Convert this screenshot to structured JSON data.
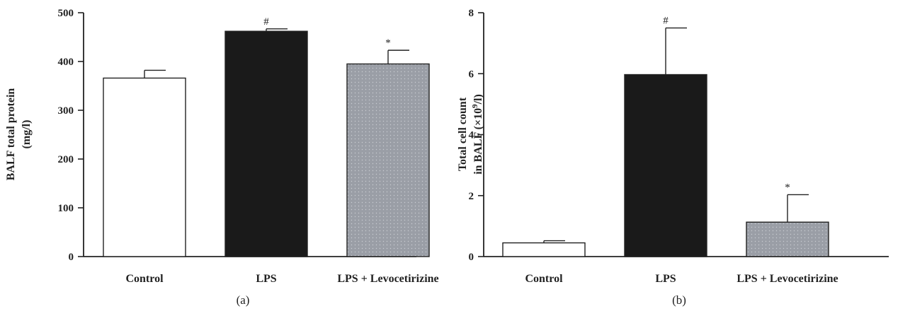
{
  "chart_data": [
    {
      "type": "bar",
      "panel_label": "(a)",
      "categories": [
        "Control",
        "LPS",
        "LPS + Levocetirizine"
      ],
      "values": [
        366,
        462,
        395
      ],
      "errors": [
        16,
        5,
        28
      ],
      "annotations": [
        "",
        "#",
        "*"
      ],
      "ylabel_lines": [
        "BALF total protein",
        "(mg/l)"
      ],
      "ylim": [
        0,
        500
      ],
      "yticks": [
        0,
        100,
        200,
        300,
        400,
        500
      ],
      "bar_styles": [
        "open",
        "solid",
        "dotted"
      ],
      "colors": {
        "open": "#ffffff",
        "solid": "#1a1a1a",
        "dotted": "#9a9ea6"
      }
    },
    {
      "type": "bar",
      "panel_label": "(b)",
      "categories": [
        "Control",
        "LPS",
        "LPS + Levocetirizine"
      ],
      "values": [
        0.45,
        5.97,
        1.13
      ],
      "errors": [
        0.07,
        1.53,
        0.9
      ],
      "annotations": [
        "",
        "#",
        "*"
      ],
      "ylabel_lines": [
        "Total cell count",
        "in BALF (×10",
        "9",
        "/l)"
      ],
      "ylim": [
        0,
        8
      ],
      "yticks": [
        0,
        2,
        4,
        6,
        8
      ],
      "bar_styles": [
        "open",
        "solid",
        "dotted"
      ],
      "colors": {
        "open": "#ffffff",
        "solid": "#1a1a1a",
        "dotted": "#9a9ea6"
      }
    }
  ]
}
